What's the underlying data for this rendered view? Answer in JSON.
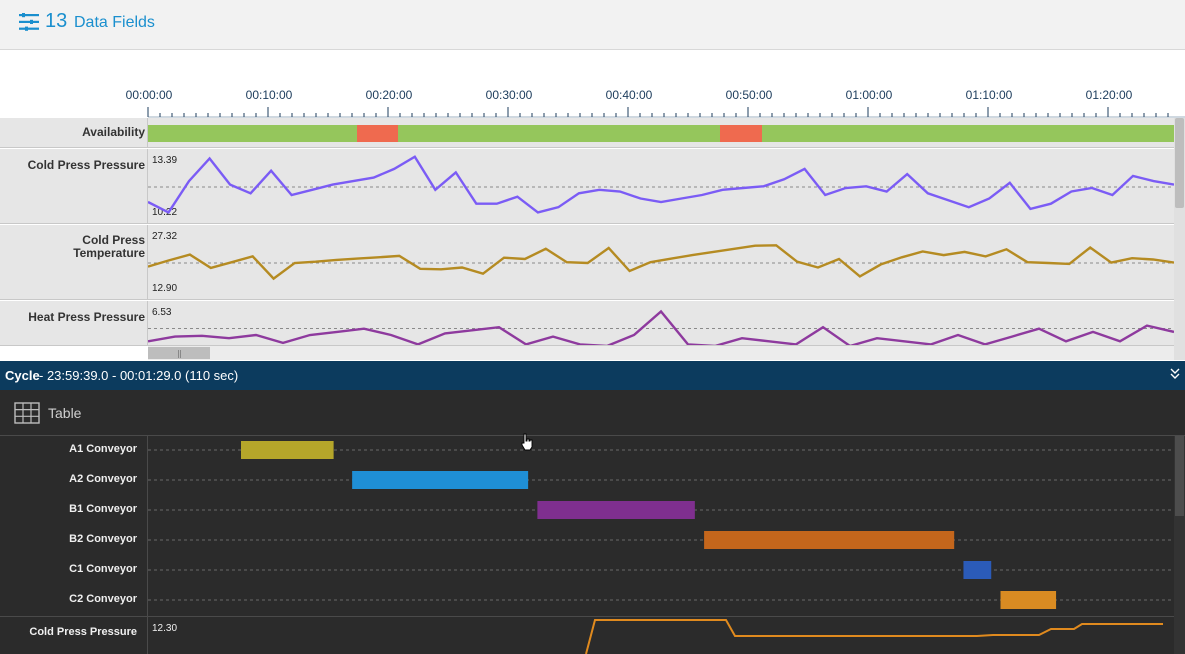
{
  "header": {
    "count": "13",
    "label": "Data Fields",
    "accent": "#1a8fce",
    "icon": "sliders-icon"
  },
  "time_axis": {
    "labels": [
      "00:00:00",
      "00:10:00",
      "00:20:00",
      "00:30:00",
      "00:40:00",
      "00:50:00",
      "01:00:00",
      "01:10:00",
      "01:20:00"
    ],
    "label_seconds": [
      0,
      600,
      1200,
      1800,
      2400,
      3000,
      3600,
      4200,
      4800
    ],
    "visible_seconds": [
      0,
      5130
    ]
  },
  "rows": {
    "availability": {
      "label": "Availability",
      "ok_color": "#95c65c",
      "down_color": "#ef6a4f",
      "down_intervals_seconds": [
        [
          1045,
          1250
        ],
        [
          2860,
          3070
        ]
      ]
    },
    "cold_press_pressure": {
      "label": "Cold Press Pressure",
      "max": "13.39",
      "min": "10.22",
      "color": "#7b5cf5",
      "values": [
        11.2,
        10.6,
        12.4,
        13.7,
        12.2,
        11.7,
        13.0,
        11.6,
        11.9,
        12.2,
        12.4,
        12.6,
        13.1,
        13.8,
        11.9,
        12.9,
        11.1,
        11.1,
        11.5,
        10.6,
        10.9,
        11.7,
        11.9,
        11.8,
        11.4,
        11.2,
        11.4,
        11.6,
        11.9,
        12.0,
        12.1,
        12.5,
        13.1,
        11.6,
        12.0,
        12.1,
        11.8,
        12.8,
        11.7,
        11.3,
        10.9,
        11.4,
        12.3,
        10.8,
        11.1,
        11.8,
        12.0,
        11.6,
        12.7,
        12.4,
        12.2
      ]
    },
    "cold_press_temperature": {
      "label": "Cold Press Temperature",
      "max": "27.32",
      "min": "12.90",
      "color": "#b58b22",
      "values": [
        19.3,
        20.7,
        22.0,
        19.0,
        20.3,
        21.6,
        16.6,
        20.1,
        20.4,
        20.8,
        21.1,
        21.4,
        21.7,
        18.8,
        18.7,
        19.1,
        17.7,
        21.3,
        21.0,
        23.3,
        20.3,
        20.1,
        23.5,
        18.3,
        20.3,
        21.1,
        21.9,
        22.6,
        23.3,
        24.0,
        24.1,
        20.4,
        19.1,
        21.0,
        17.1,
        19.8,
        21.4,
        22.7,
        21.9,
        22.6,
        21.6,
        23.2,
        20.3,
        20.1,
        19.9,
        23.6,
        20.2,
        21.2,
        20.9,
        20.2
      ]
    },
    "heat_press_pressure": {
      "label": "Heat Press Pressure",
      "max": "6.53",
      "color": "#8e3a9e",
      "values": [
        4.6,
        4.9,
        4.95,
        4.8,
        5.0,
        4.5,
        5.0,
        5.2,
        5.4,
        5.0,
        4.4,
        5.1,
        5.3,
        5.5,
        4.4,
        4.9,
        4.4,
        4.3,
        5.0,
        6.5,
        4.4,
        4.3,
        4.8,
        4.6,
        4.4,
        5.5,
        4.3,
        4.8,
        4.6,
        4.4,
        5.0,
        4.4,
        4.9,
        5.4,
        4.6,
        5.2,
        4.6,
        5.6,
        5.2
      ]
    }
  },
  "cycle": {
    "title": "Cycle",
    "range_text": " - 23:59:39.0 - 00:01:29.0 (110 sec)",
    "bar_color": "#0c3b5e",
    "collapse_icon": "double-chevron-down-icon",
    "table_label": "Table",
    "table_icon": "table-grid-icon",
    "duration_seconds": 110,
    "tasks": [
      {
        "label": "A1 Conveyor",
        "start": 9,
        "end": 19,
        "color": "#b5a62a"
      },
      {
        "label": "A2 Conveyor",
        "start": 21,
        "end": 40,
        "color": "#1f8fd6"
      },
      {
        "label": "B1 Conveyor",
        "start": 41,
        "end": 58,
        "color": "#7f2f8f"
      },
      {
        "label": "B2 Conveyor",
        "start": 59,
        "end": 86,
        "color": "#c4661c"
      },
      {
        "label": "C1 Conveyor",
        "start": 87,
        "end": 90,
        "color": "#2b5bb8"
      },
      {
        "label": "C2 Conveyor",
        "start": 91,
        "end": 97,
        "color": "#d98b22"
      }
    ],
    "bottom_row": {
      "label": "Cold Press Pressure",
      "max": "12.30",
      "color": "#e08a1e"
    }
  }
}
